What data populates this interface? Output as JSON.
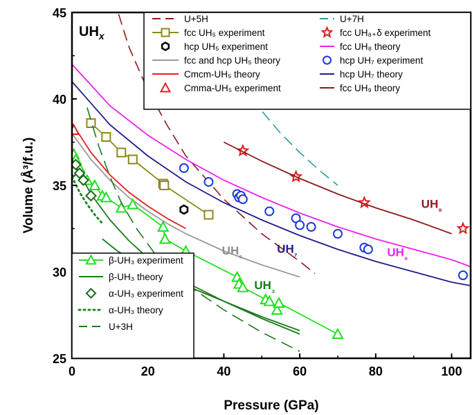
{
  "chart_data": {
    "type": "line",
    "panel_label": "UH",
    "panel_label_subscript": "x",
    "xlabel": "Pressure (GPa)",
    "ylabel": "Volume (Å³/f.u.)",
    "xlim": [
      0,
      105
    ],
    "ylim": [
      25,
      45
    ],
    "xticks": [
      0,
      20,
      40,
      60,
      80,
      100
    ],
    "yticks": [
      25,
      30,
      35,
      40,
      45
    ],
    "grid": false,
    "legend_placement": [
      "top-center",
      "top-right",
      "bottom-left"
    ],
    "annotations": [
      {
        "text": "UH₅",
        "x": 39.5,
        "y": 31.0,
        "color": "#8c8c8c"
      },
      {
        "text": "UH₇",
        "x": 54,
        "y": 31.1,
        "color": "#1c1c8a"
      },
      {
        "text": "UH₃",
        "x": 48,
        "y": 29.0,
        "color": "#1a7a1a"
      },
      {
        "text": "UH₈",
        "x": 83,
        "y": 30.9,
        "color": "#ee22ee"
      },
      {
        "text": "UH₉",
        "x": 92,
        "y": 33.7,
        "color": "#8b1a1a"
      }
    ],
    "series": [
      {
        "name": "U+5H",
        "legend": "top-center",
        "kind": "line",
        "color": "#8b1a1a",
        "dash": "16,8",
        "x": [
          6,
          10,
          15,
          20,
          25,
          30,
          40,
          50,
          60,
          64
        ],
        "y": [
          49.5,
          46.5,
          43.0,
          40.5,
          38.5,
          36.7,
          34.2,
          32.2,
          30.6,
          29.9
        ]
      },
      {
        "name": "fcc UH₅ experiment",
        "legend": "top-center",
        "kind": "line-marker",
        "marker": "square",
        "color": "#8a8a1a",
        "x": [
          5,
          9,
          13,
          16,
          24,
          24.3,
          36
        ],
        "y": [
          38.6,
          37.8,
          36.9,
          36.5,
          35.1,
          35.0,
          33.3
        ]
      },
      {
        "name": "hcp UH₅ experiment",
        "legend": "top-center",
        "kind": "marker",
        "marker": "hexagon",
        "color": "#000000",
        "x": [
          29.5
        ],
        "y": [
          33.6
        ]
      },
      {
        "name": "fcc and hcp UH₅ theory",
        "legend": "top-center",
        "kind": "line",
        "color": "#999999",
        "x": [
          0,
          5,
          10,
          15,
          20,
          25,
          30,
          40,
          50,
          60
        ],
        "y": [
          38.0,
          36.5,
          35.3,
          34.3,
          33.5,
          32.8,
          32.2,
          31.2,
          30.4,
          29.7
        ]
      },
      {
        "name": "Cmcm-UH₅ theory",
        "legend": "top-center",
        "kind": "line",
        "color": "#e02020",
        "x": [
          0,
          5,
          10,
          15,
          20,
          25,
          30
        ],
        "y": [
          38.6,
          36.9,
          35.6,
          34.6,
          33.8,
          33.1,
          32.5
        ]
      },
      {
        "name": "Cmma-UH₅ experiment",
        "legend": "top-center",
        "kind": "marker",
        "marker": "triangle-open",
        "color": "#e02020",
        "x": [
          0.5
        ],
        "y": [
          38.2
        ]
      },
      {
        "name": "U+7H",
        "legend": "top-right",
        "kind": "line",
        "color": "#2a9a9a",
        "dash": "16,8",
        "x": [
          45,
          50,
          55,
          60,
          65,
          70
        ],
        "y": [
          40.8,
          39.3,
          38.0,
          36.9,
          35.9,
          35.0
        ]
      },
      {
        "name": "fcc UH₈₊δ experiment",
        "legend": "top-right",
        "kind": "marker",
        "marker": "star-open",
        "color": "#e02020",
        "x": [
          45,
          59,
          77,
          103
        ],
        "y": [
          37.0,
          35.5,
          34.0,
          32.5
        ]
      },
      {
        "name": "fcc UH₈ theory",
        "legend": "top-right",
        "kind": "line",
        "color": "#ee22ee",
        "x": [
          0,
          10,
          20,
          30,
          40,
          50,
          60,
          70,
          80,
          90,
          100,
          105
        ],
        "y": [
          42.0,
          39.6,
          37.9,
          36.5,
          35.3,
          34.3,
          33.4,
          32.6,
          31.9,
          31.3,
          30.7,
          30.3
        ]
      },
      {
        "name": "hcp UH₇ experiment",
        "legend": "top-right",
        "kind": "marker",
        "marker": "circle-open",
        "color": "#1a3ad8",
        "x": [
          29.5,
          36,
          43.5,
          44,
          44.5,
          45,
          52,
          59,
          60,
          63,
          70,
          77,
          78,
          103
        ],
        "y": [
          36.0,
          35.2,
          34.5,
          34.3,
          34.4,
          34.2,
          33.5,
          33.1,
          32.7,
          32.6,
          32.2,
          31.4,
          31.3,
          29.8
        ]
      },
      {
        "name": "hcp UH₇ theory",
        "legend": "top-right",
        "kind": "line",
        "color": "#1c1c8a",
        "x": [
          0,
          10,
          20,
          30,
          40,
          50,
          60,
          70,
          80,
          90,
          100,
          105
        ],
        "y": [
          41.0,
          38.5,
          36.7,
          35.2,
          34.0,
          33.0,
          32.1,
          31.3,
          30.6,
          30.0,
          29.4,
          29.2
        ]
      },
      {
        "name": "fcc UH₉ theory",
        "legend": "top-right",
        "kind": "line",
        "color": "#8b1a1a",
        "x": [
          40,
          50,
          60,
          70,
          80,
          90,
          100
        ],
        "y": [
          37.5,
          36.4,
          35.4,
          34.5,
          33.7,
          33.0,
          32.2
        ]
      },
      {
        "name": "β-UH₃ experiment",
        "legend": "bottom-left",
        "kind": "line-marker",
        "marker": "triangle-open",
        "color": "#20e020",
        "x": [
          0.5,
          1,
          2,
          4,
          6,
          8,
          9,
          13,
          16,
          24,
          24.5,
          30,
          43.5,
          44,
          45,
          51,
          52,
          54,
          54.5,
          70
        ],
        "y": [
          36.8,
          36.5,
          36.0,
          35.3,
          35.0,
          34.4,
          34.3,
          33.7,
          33.9,
          32.6,
          31.9,
          31.2,
          29.7,
          29.3,
          29.1,
          28.4,
          28.3,
          27.8,
          28.2,
          26.4
        ]
      },
      {
        "name": "β-UH₃ theory",
        "legend": "bottom-left",
        "kind": "line",
        "color": "#1a7a1a",
        "x": [
          0,
          5,
          10,
          15,
          20,
          30,
          40,
          50,
          60
        ],
        "y": [
          36.5,
          34.5,
          33.0,
          31.8,
          30.8,
          29.4,
          28.3,
          27.4,
          26.6
        ]
      },
      {
        "name": "α-UH₃ experiment",
        "legend": "bottom-left",
        "kind": "marker",
        "marker": "diamond-open",
        "color": "#1a6a1a",
        "x": [
          0.5,
          1,
          2,
          3,
          5
        ],
        "y": [
          35.8,
          36.2,
          35.7,
          35.3,
          34.4
        ]
      },
      {
        "name": "α-UH₃ theory",
        "legend": "bottom-left",
        "kind": "line",
        "color": "#1a8a1a",
        "dash": "2,5",
        "x": [
          0,
          2,
          4,
          6,
          8
        ],
        "y": [
          35.5,
          34.6,
          33.9,
          33.3,
          32.8
        ]
      },
      {
        "name": "U+3H",
        "legend": "bottom-left",
        "kind": "line",
        "color": "#1a7a1a",
        "dash": "18,9",
        "x": [
          4,
          7,
          10,
          13,
          17,
          22,
          30,
          40,
          50,
          60
        ],
        "y": [
          39.5,
          37.3,
          35.5,
          34.0,
          32.5,
          31.0,
          29.3,
          27.8,
          26.5,
          25.4
        ]
      },
      {
        "name": "",
        "legend": "",
        "kind": "line",
        "color": "#1a7a1a",
        "x": [
          8,
          12,
          16,
          20,
          25,
          30,
          40,
          50,
          60
        ],
        "y": [
          31.9,
          31.2,
          30.7,
          30.2,
          29.7,
          29.2,
          28.3,
          27.3,
          26.4
        ]
      }
    ]
  }
}
